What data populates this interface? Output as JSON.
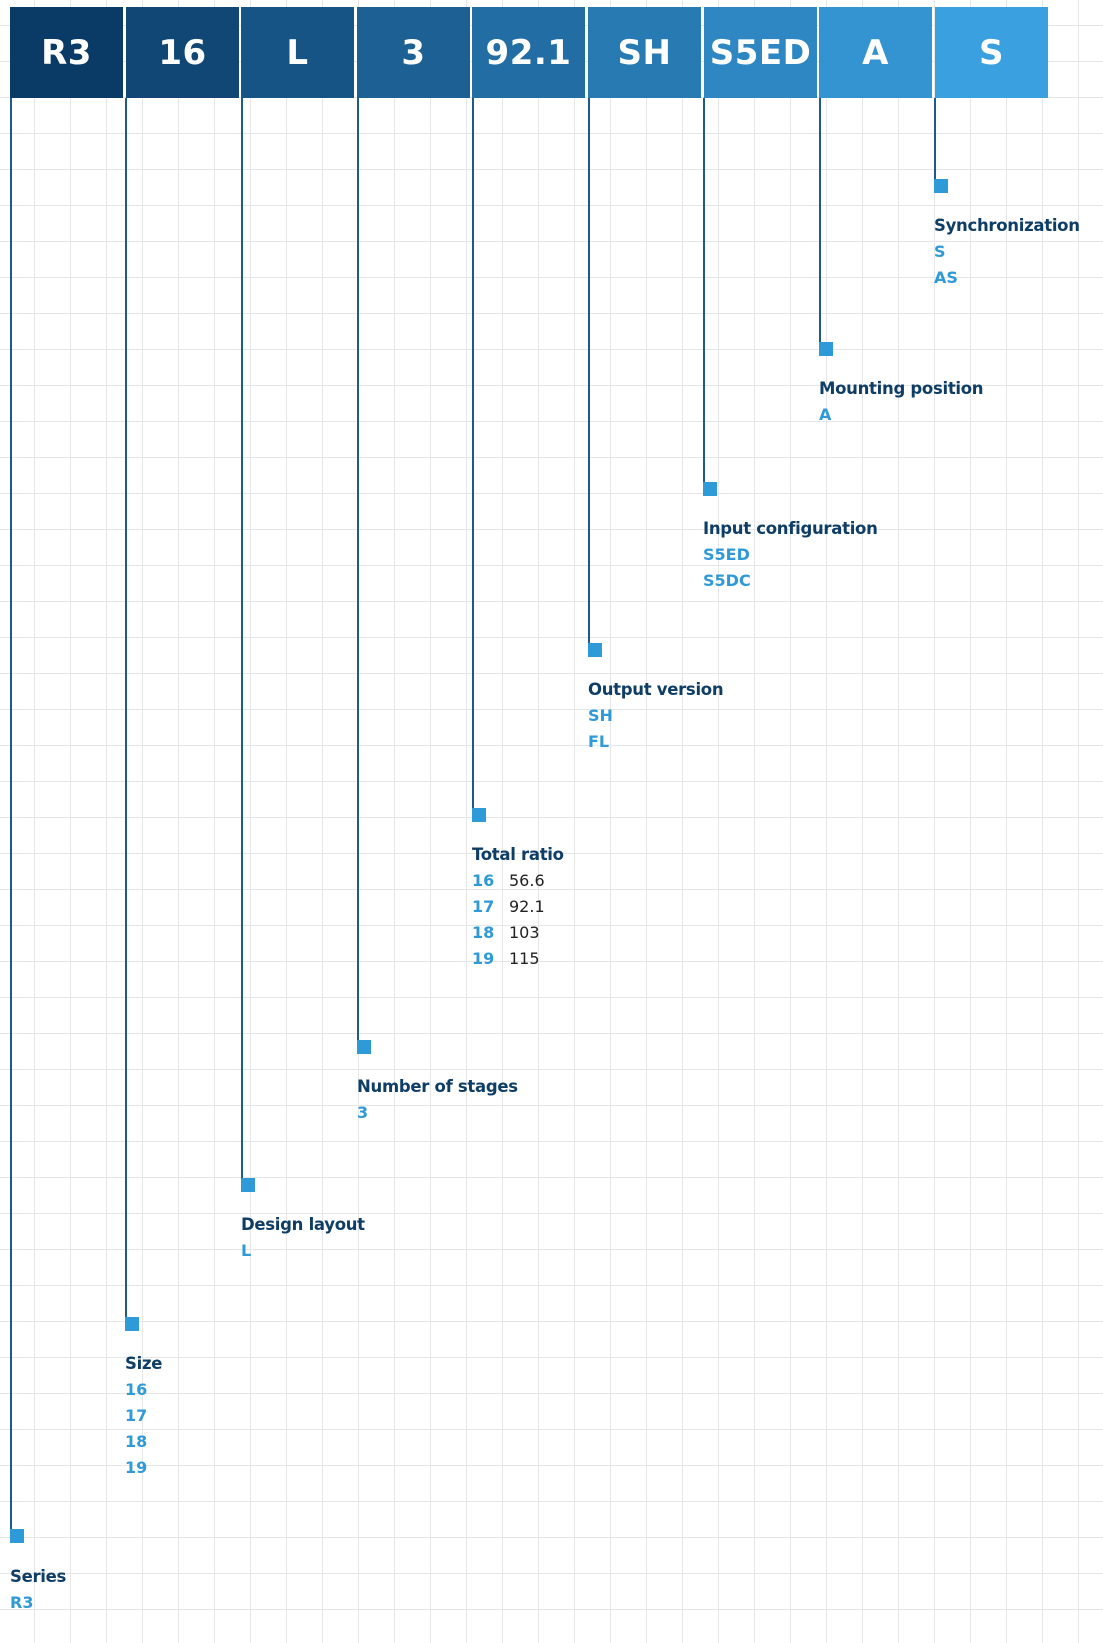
{
  "code": {
    "series": "R3",
    "size": "16",
    "layout": "L",
    "stages": "3",
    "ratio": "92.1",
    "output": "SH",
    "input": "S5ED",
    "mounting": "A",
    "sync": "S"
  },
  "colors": {
    "box_gradient_start": "#0a3a66",
    "box_gradient_end": "#3aa0e0",
    "connector": "#1e5a8c",
    "marker": "#2f9ad8",
    "title": "#0e3d66",
    "option": "#2f9ad8"
  },
  "series": {
    "title": "Series",
    "options": [
      "R3"
    ]
  },
  "size": {
    "title": "Size",
    "options": [
      "16",
      "17",
      "18",
      "19"
    ]
  },
  "layout": {
    "title": "Design layout",
    "options": [
      "L"
    ]
  },
  "stages": {
    "title": "Number of stages",
    "options": [
      "3"
    ]
  },
  "ratio": {
    "title": "Total ratio",
    "rows": [
      {
        "key": "16",
        "value": "56.6"
      },
      {
        "key": "17",
        "value": "92.1"
      },
      {
        "key": "18",
        "value": "103"
      },
      {
        "key": "19",
        "value": "115"
      }
    ]
  },
  "output": {
    "title": "Output version",
    "options": [
      "SH",
      "FL"
    ]
  },
  "input": {
    "title": "Input configuration",
    "options": [
      "S5ED",
      "S5DC"
    ]
  },
  "mounting": {
    "title": "Mounting position",
    "options": [
      "A"
    ]
  },
  "sync": {
    "title": "Synchronization",
    "options": [
      "S",
      "AS"
    ]
  }
}
